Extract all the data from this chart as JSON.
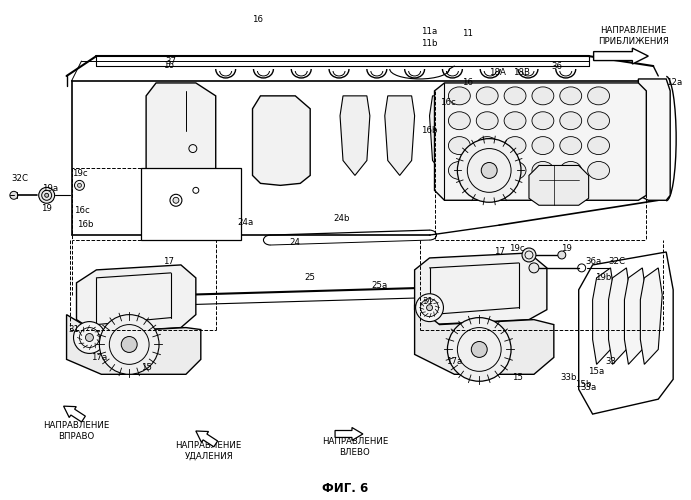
{
  "background_color": "#ffffff",
  "line_color": "#000000",
  "fig_width": 6.91,
  "fig_height": 5.0,
  "dpi": 100,
  "labels": {
    "direction_approach": "НАПРАВЛЕНИЕ\nПРИБЛИЖЕНИЯ",
    "direction_right": "НАПРАВЛЕНИЕ\nВПРАВО",
    "direction_removal": "НАПРАВЛЕНИЕ\nУДАЛЕНИЯ",
    "direction_left": "НАПРАВЛЕНИЕ\nВЛЕВО",
    "fig": "ФИГ. 6"
  }
}
